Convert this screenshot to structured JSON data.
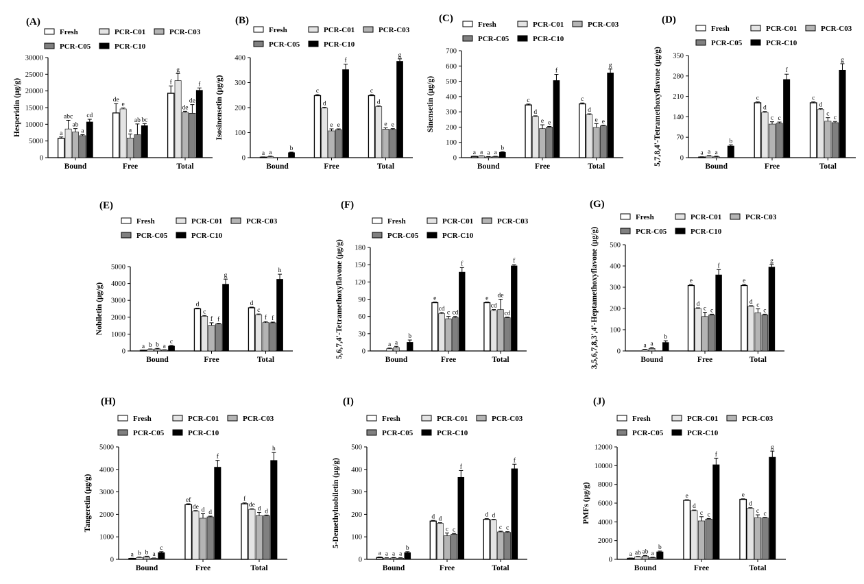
{
  "figure": {
    "groups": [
      "Bound",
      "Free",
      "Total"
    ],
    "legend": [
      {
        "name": "Fresh",
        "color": "#ffffff"
      },
      {
        "name": "PCR-C01",
        "color": "#e4e4e4"
      },
      {
        "name": "PCR-C03",
        "color": "#b4b4b4"
      },
      {
        "name": "PCR-C05",
        "color": "#808080"
      },
      {
        "name": "PCR-C10",
        "color": "#000000"
      }
    ]
  },
  "chart_data": [
    {
      "type": "bar",
      "panel": "(A)",
      "ylabel": "Hesperidin (μg/g)",
      "categories": [
        "Bound",
        "Free",
        "Total"
      ],
      "ylim": [
        0,
        30000
      ],
      "yticks": [
        0,
        5000,
        10000,
        15000,
        20000,
        25000,
        30000
      ],
      "series": [
        {
          "name": "Fresh",
          "values": [
            5800,
            13400,
            19300
          ],
          "errors": [
            400,
            2800,
            2200
          ],
          "letters": [
            "a",
            "de",
            "f"
          ]
        },
        {
          "name": "PCR-C01",
          "values": [
            8600,
            14600,
            23100
          ],
          "errors": [
            2600,
            300,
            2100
          ],
          "letters": [
            "abc",
            "e",
            "g"
          ]
        },
        {
          "name": "PCR-C03",
          "values": [
            7700,
            5900,
            13600
          ],
          "errors": [
            1000,
            1200,
            300
          ],
          "letters": [
            "ab",
            "a",
            "de"
          ]
        },
        {
          "name": "PCR-C05",
          "values": [
            6600,
            6900,
            13300
          ],
          "errors": [
            300,
            3200,
            2600
          ],
          "letters": [
            "a",
            "ab",
            "de"
          ]
        },
        {
          "name": "PCR-C10",
          "values": [
            10700,
            9600,
            20200
          ],
          "errors": [
            800,
            600,
            700
          ],
          "letters": [
            "cd",
            "bc",
            "f"
          ]
        }
      ]
    },
    {
      "type": "bar",
      "panel": "(B)",
      "ylabel": "Isosinensetin (μg/g)",
      "categories": [
        "Bound",
        "Free",
        "Total"
      ],
      "ylim": [
        0,
        400
      ],
      "yticks": [
        0,
        100,
        200,
        300,
        400
      ],
      "series": [
        {
          "name": "Fresh",
          "values": [
            2,
            248,
            248
          ],
          "errors": [
            1,
            4,
            4
          ],
          "letters": [
            "a",
            "c",
            "c"
          ]
        },
        {
          "name": "PCR-C01",
          "values": [
            4,
            198,
            204
          ],
          "errors": [
            2,
            3,
            3
          ],
          "letters": [
            "a",
            "d",
            "d"
          ]
        },
        {
          "name": "PCR-C03",
          "values": [
            0,
            107,
            114
          ],
          "errors": [
            0,
            8,
            5
          ],
          "letters": [
            "",
            "e",
            "e"
          ]
        },
        {
          "name": "PCR-C05",
          "values": [
            0,
            112,
            113
          ],
          "errors": [
            0,
            3,
            3
          ],
          "letters": [
            "",
            "e",
            "e"
          ]
        },
        {
          "name": "PCR-C10",
          "values": [
            20,
            352,
            385
          ],
          "errors": [
            2,
            22,
            10
          ],
          "letters": [
            "b",
            "f",
            "g"
          ]
        }
      ]
    },
    {
      "type": "bar",
      "panel": "(C)",
      "ylabel": "Sinensetin (μg/g)",
      "categories": [
        "Bound",
        "Free",
        "Total"
      ],
      "ylim": [
        0,
        700
      ],
      "yticks": [
        0,
        100,
        200,
        300,
        400,
        500,
        600,
        700
      ],
      "series": [
        {
          "name": "Fresh",
          "values": [
            8,
            345,
            352
          ],
          "errors": [
            2,
            6,
            6
          ],
          "letters": [
            "a",
            "c",
            "c"
          ]
        },
        {
          "name": "PCR-C01",
          "values": [
            10,
            270,
            282
          ],
          "errors": [
            2,
            4,
            5
          ],
          "letters": [
            "a",
            "d",
            "d"
          ]
        },
        {
          "name": "PCR-C03",
          "values": [
            5,
            190,
            198
          ],
          "errors": [
            2,
            25,
            25
          ],
          "letters": [
            "a",
            "e",
            "e"
          ]
        },
        {
          "name": "PCR-C05",
          "values": [
            7,
            200,
            208
          ],
          "errors": [
            2,
            4,
            4
          ],
          "letters": [
            "a",
            "e",
            "e"
          ]
        },
        {
          "name": "PCR-C10",
          "values": [
            35,
            505,
            555
          ],
          "errors": [
            4,
            40,
            25
          ],
          "letters": [
            "b",
            "f",
            "g"
          ]
        }
      ]
    },
    {
      "type": "bar",
      "panel": "(D)",
      "ylabel": "5,7,8,4'-Tetramethoxyflavone (μg/g)",
      "categories": [
        "Bound",
        "Free",
        "Total"
      ],
      "ylim": [
        0,
        350
      ],
      "yticks": [
        0,
        70,
        140,
        210,
        280,
        350
      ],
      "series": [
        {
          "name": "Fresh",
          "values": [
            2,
            188,
            188
          ],
          "errors": [
            1,
            3,
            3
          ],
          "letters": [
            "a",
            "c",
            "c"
          ]
        },
        {
          "name": "PCR-C01",
          "values": [
            5,
            155,
            165
          ],
          "errors": [
            2,
            3,
            3
          ],
          "letters": [
            "a",
            "d",
            "d"
          ]
        },
        {
          "name": "PCR-C03",
          "values": [
            3,
            115,
            125
          ],
          "errors": [
            2,
            8,
            12
          ],
          "letters": [
            "a",
            "c",
            "c"
          ]
        },
        {
          "name": "PCR-C05",
          "values": [
            0,
            118,
            120
          ],
          "errors": [
            0,
            4,
            4
          ],
          "letters": [
            "",
            "c",
            "c"
          ]
        },
        {
          "name": "PCR-C10",
          "values": [
            40,
            268,
            300
          ],
          "errors": [
            4,
            18,
            22
          ],
          "letters": [
            "b",
            "f",
            "g"
          ]
        }
      ]
    },
    {
      "type": "bar",
      "panel": "(E)",
      "ylabel": "Nobiletin (μg/g)",
      "categories": [
        "Bound",
        "Free",
        "Total"
      ],
      "ylim": [
        0,
        5000
      ],
      "yticks": [
        0,
        1000,
        2000,
        3000,
        4000,
        5000
      ],
      "series": [
        {
          "name": "Fresh",
          "values": [
            40,
            2500,
            2560
          ],
          "errors": [
            10,
            40,
            40
          ],
          "letters": [
            "a",
            "d",
            "d"
          ]
        },
        {
          "name": "PCR-C01",
          "values": [
            100,
            2060,
            2150
          ],
          "errors": [
            20,
            40,
            40
          ],
          "letters": [
            "b",
            "c",
            "c"
          ]
        },
        {
          "name": "PCR-C03",
          "values": [
            120,
            1520,
            1680
          ],
          "errors": [
            30,
            150,
            60
          ],
          "letters": [
            "b",
            "f",
            "f"
          ]
        },
        {
          "name": "PCR-C05",
          "values": [
            60,
            1600,
            1670
          ],
          "errors": [
            10,
            40,
            40
          ],
          "letters": [
            "a",
            "f",
            "f"
          ]
        },
        {
          "name": "PCR-C10",
          "values": [
            290,
            3960,
            4250
          ],
          "errors": [
            40,
            300,
            300
          ],
          "letters": [
            "c",
            "g",
            "h"
          ]
        }
      ]
    },
    {
      "type": "bar",
      "panel": "(F)",
      "ylabel": "5,6,7,4'-Tetramethoxyflavone (μg/g)",
      "categories": [
        "Bound",
        "Free",
        "Total"
      ],
      "ylim": [
        0,
        180
      ],
      "yticks": [
        0,
        30,
        60,
        90,
        120,
        150,
        180
      ],
      "series": [
        {
          "name": "Fresh",
          "values": [
            0,
            84,
            84
          ],
          "errors": [
            0,
            1,
            1
          ],
          "letters": [
            "",
            "e",
            "e"
          ]
        },
        {
          "name": "PCR-C01",
          "values": [
            4,
            65,
            70
          ],
          "errors": [
            1,
            2,
            2
          ],
          "letters": [
            "a",
            "cd",
            "cd"
          ]
        },
        {
          "name": "PCR-C03",
          "values": [
            6,
            56,
            72
          ],
          "errors": [
            2,
            4,
            18
          ],
          "letters": [
            "a",
            "c",
            "de"
          ]
        },
        {
          "name": "PCR-C05",
          "values": [
            0,
            58,
            58
          ],
          "errors": [
            0,
            2,
            1
          ],
          "letters": [
            "",
            "cd",
            "cd"
          ]
        },
        {
          "name": "PCR-C10",
          "values": [
            15,
            137,
            148
          ],
          "errors": [
            4,
            8,
            2
          ],
          "letters": [
            "b",
            "f",
            "f"
          ]
        }
      ]
    },
    {
      "type": "bar",
      "panel": "(G)",
      "ylabel": "3,5,6,7,8,3',4'-Heptamethoxyflavone (μg/g)",
      "categories": [
        "Bound",
        "Free",
        "Total"
      ],
      "ylim": [
        0,
        500
      ],
      "yticks": [
        0,
        100,
        200,
        300,
        400,
        500
      ],
      "series": [
        {
          "name": "Fresh",
          "values": [
            0,
            308,
            308
          ],
          "errors": [
            0,
            5,
            5
          ],
          "letters": [
            "",
            "e",
            "e"
          ]
        },
        {
          "name": "PCR-C01",
          "values": [
            6,
            200,
            210
          ],
          "errors": [
            2,
            3,
            3
          ],
          "letters": [
            "a",
            "d",
            "d"
          ]
        },
        {
          "name": "PCR-C03",
          "values": [
            12,
            162,
            180
          ],
          "errors": [
            4,
            20,
            18
          ],
          "letters": [
            "a",
            "c",
            "c"
          ]
        },
        {
          "name": "PCR-C05",
          "values": [
            0,
            170,
            170
          ],
          "errors": [
            0,
            3,
            3
          ],
          "letters": [
            "",
            "c",
            "c"
          ]
        },
        {
          "name": "PCR-C10",
          "values": [
            40,
            358,
            395
          ],
          "errors": [
            8,
            25,
            12
          ],
          "letters": [
            "b",
            "f",
            "g"
          ]
        }
      ]
    },
    {
      "type": "bar",
      "panel": "(H)",
      "ylabel": "Tangeretin (μg/g)",
      "categories": [
        "Bound",
        "Free",
        "Total"
      ],
      "ylim": [
        0,
        5000
      ],
      "yticks": [
        0,
        1000,
        2000,
        3000,
        4000,
        5000
      ],
      "series": [
        {
          "name": "Fresh",
          "values": [
            40,
            2430,
            2470
          ],
          "errors": [
            10,
            40,
            40
          ],
          "letters": [
            "a",
            "ef",
            "f"
          ]
        },
        {
          "name": "PCR-C01",
          "values": [
            80,
            2140,
            2220
          ],
          "errors": [
            20,
            30,
            30
          ],
          "letters": [
            "b",
            "de",
            "de"
          ]
        },
        {
          "name": "PCR-C03",
          "values": [
            110,
            1830,
            1940
          ],
          "errors": [
            30,
            200,
            150
          ],
          "letters": [
            "b",
            "d",
            "d"
          ]
        },
        {
          "name": "PCR-C05",
          "values": [
            50,
            1890,
            1940
          ],
          "errors": [
            10,
            30,
            30
          ],
          "letters": [
            "a",
            "d",
            "d"
          ]
        },
        {
          "name": "PCR-C10",
          "values": [
            300,
            4100,
            4400
          ],
          "errors": [
            40,
            300,
            350
          ],
          "letters": [
            "c",
            "f",
            "h"
          ]
        }
      ]
    },
    {
      "type": "bar",
      "panel": "(I)",
      "ylabel": "5-Demethylnobiletin (μg/g)",
      "categories": [
        "Bound",
        "Free",
        "Total"
      ],
      "ylim": [
        0,
        500
      ],
      "yticks": [
        0,
        100,
        200,
        300,
        400,
        500
      ],
      "series": [
        {
          "name": "Fresh",
          "values": [
            8,
            170,
            178
          ],
          "errors": [
            2,
            3,
            3
          ],
          "letters": [
            "a",
            "d",
            "d"
          ]
        },
        {
          "name": "PCR-C01",
          "values": [
            5,
            160,
            175
          ],
          "errors": [
            2,
            3,
            3
          ],
          "letters": [
            "a",
            "d",
            "d"
          ]
        },
        {
          "name": "PCR-C03",
          "values": [
            6,
            105,
            122
          ],
          "errors": [
            2,
            12,
            3
          ],
          "letters": [
            "a",
            "c",
            "c"
          ]
        },
        {
          "name": "PCR-C05",
          "values": [
            5,
            112,
            120
          ],
          "errors": [
            2,
            3,
            3
          ],
          "letters": [
            "a",
            "c",
            "c"
          ]
        },
        {
          "name": "PCR-C10",
          "values": [
            30,
            365,
            403
          ],
          "errors": [
            4,
            30,
            20
          ],
          "letters": [
            "b",
            "f",
            "f"
          ]
        }
      ]
    },
    {
      "type": "bar",
      "panel": "(J)",
      "ylabel": "PMFs (μg/g)",
      "categories": [
        "Bound",
        "Free",
        "Total"
      ],
      "ylim": [
        0,
        12000
      ],
      "yticks": [
        0,
        2000,
        4000,
        6000,
        8000,
        10000,
        12000
      ],
      "series": [
        {
          "name": "Fresh",
          "values": [
            110,
            6300,
            6400
          ],
          "errors": [
            30,
            60,
            60
          ],
          "letters": [
            "a",
            "e",
            "e"
          ]
        },
        {
          "name": "PCR-C01",
          "values": [
            260,
            5200,
            5450
          ],
          "errors": [
            50,
            60,
            60
          ],
          "letters": [
            "ab",
            "d",
            "d"
          ]
        },
        {
          "name": "PCR-C03",
          "values": [
            350,
            4100,
            4450
          ],
          "errors": [
            60,
            450,
            300
          ],
          "letters": [
            "ab",
            "c",
            "c"
          ]
        },
        {
          "name": "PCR-C05",
          "values": [
            180,
            4300,
            4420
          ],
          "errors": [
            40,
            60,
            60
          ],
          "letters": [
            "a",
            "c",
            "c"
          ]
        },
        {
          "name": "PCR-C10",
          "values": [
            800,
            10100,
            10900
          ],
          "errors": [
            80,
            700,
            650
          ],
          "letters": [
            "b",
            "f",
            "g"
          ]
        }
      ]
    }
  ]
}
